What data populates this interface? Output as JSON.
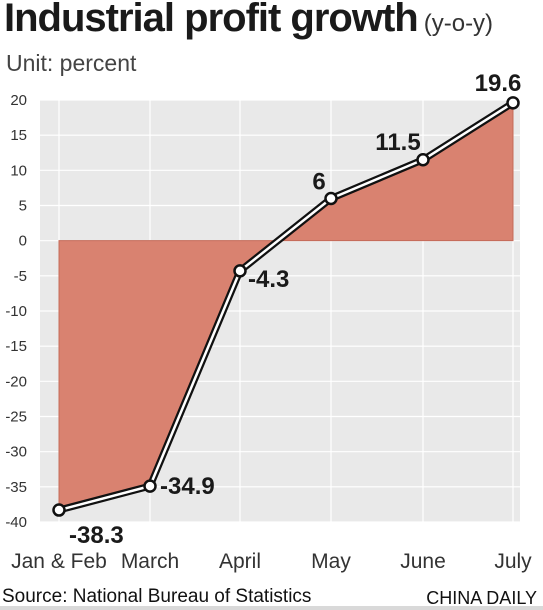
{
  "chart_data": {
    "type": "area",
    "title": "Industrial profit growth",
    "subtitle": "(y-o-y)",
    "unit_label": "Unit: percent",
    "categories": [
      "Jan & Feb",
      "March",
      "April",
      "May",
      "June",
      "July"
    ],
    "values": [
      -38.3,
      -34.9,
      -4.3,
      6,
      11.5,
      19.6
    ],
    "data_labels": [
      "-38.3",
      "-34.9",
      "-4.3",
      "6",
      "11.5",
      "19.6"
    ],
    "ylim": [
      -40,
      20
    ],
    "yticks": [
      "20",
      "15",
      "10",
      "5",
      "0",
      "-5",
      "-10",
      "-15",
      "-20",
      "-25",
      "-30",
      "-35",
      "-40"
    ],
    "grid": true,
    "colors": {
      "fill": "#d98270",
      "line": "#111111",
      "plot_bg": "#e9e9e9",
      "grid": "#ffffff"
    }
  },
  "footer": {
    "source": "Source: National Bureau of Statistics",
    "brand": "CHINA DAILY"
  }
}
